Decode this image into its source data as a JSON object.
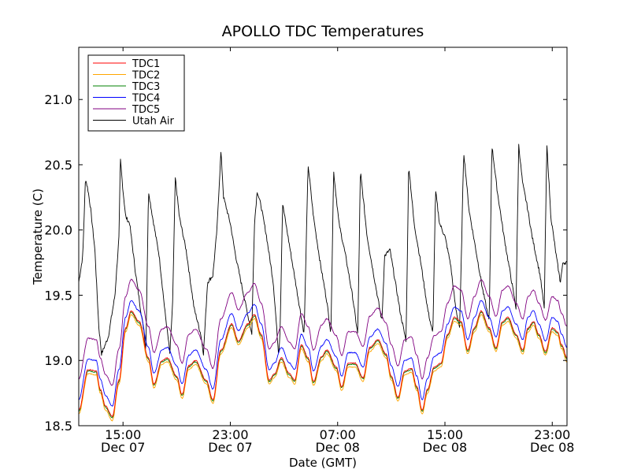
{
  "chart_data": {
    "type": "line",
    "title": "APOLLO TDC Temperatures",
    "xlabel": "Date (GMT)",
    "ylabel": "Temperature (C)",
    "xlim": [
      0,
      36.4
    ],
    "ylim": [
      18.5,
      21.4
    ],
    "yticks": [
      {
        "value": 18.5,
        "label": "18.5"
      },
      {
        "value": 19.0,
        "label": "19.0"
      },
      {
        "value": 19.5,
        "label": "19.5"
      },
      {
        "value": 20.0,
        "label": "20.0"
      },
      {
        "value": 20.5,
        "label": "20.5"
      },
      {
        "value": 21.0,
        "label": "21.0"
      }
    ],
    "xticks": [
      {
        "value": 3.3,
        "time": "15:00",
        "date": "Dec 07"
      },
      {
        "value": 11.3,
        "time": "23:00",
        "date": "Dec 07"
      },
      {
        "value": 19.3,
        "time": "07:00",
        "date": "Dec 08"
      },
      {
        "value": 27.3,
        "time": "15:00",
        "date": "Dec 08"
      },
      {
        "value": 35.3,
        "time": "23:00",
        "date": "Dec 08"
      }
    ],
    "legend_position": "top-left",
    "series": [
      {
        "name": "TDC1",
        "color": "#ff0000"
      },
      {
        "name": "TDC2",
        "color": "#ffa500"
      },
      {
        "name": "TDC3",
        "color": "#008000"
      },
      {
        "name": "TDC4",
        "color": "#0000ff"
      },
      {
        "name": "TDC5",
        "color": "#800080"
      },
      {
        "name": "Utah Air",
        "color": "#000000"
      }
    ],
    "base_tdc_key_points": [
      [
        0.0,
        18.62
      ],
      [
        0.7,
        18.93
      ],
      [
        1.3,
        18.92
      ],
      [
        1.6,
        18.78
      ],
      [
        2.0,
        18.65
      ],
      [
        2.5,
        18.57
      ],
      [
        3.0,
        18.85
      ],
      [
        3.5,
        19.25
      ],
      [
        3.9,
        19.38
      ],
      [
        4.5,
        19.3
      ],
      [
        5.2,
        19.02
      ],
      [
        5.6,
        18.82
      ],
      [
        6.2,
        19.0
      ],
      [
        6.6,
        19.02
      ],
      [
        7.3,
        18.88
      ],
      [
        7.7,
        18.74
      ],
      [
        8.2,
        18.96
      ],
      [
        8.7,
        19.0
      ],
      [
        9.5,
        18.85
      ],
      [
        10.0,
        18.7
      ],
      [
        10.6,
        19.08
      ],
      [
        11.4,
        19.28
      ],
      [
        11.9,
        19.15
      ],
      [
        12.6,
        19.28
      ],
      [
        13.1,
        19.35
      ],
      [
        13.6,
        19.2
      ],
      [
        14.2,
        18.85
      ],
      [
        14.6,
        18.9
      ],
      [
        15.1,
        19.02
      ],
      [
        15.7,
        18.9
      ],
      [
        16.1,
        18.85
      ],
      [
        16.6,
        19.12
      ],
      [
        17.1,
        19.02
      ],
      [
        17.5,
        18.84
      ],
      [
        18.1,
        19.03
      ],
      [
        18.5,
        19.08
      ],
      [
        19.2,
        18.95
      ],
      [
        19.6,
        18.8
      ],
      [
        20.1,
        18.98
      ],
      [
        20.6,
        18.98
      ],
      [
        21.2,
        18.87
      ],
      [
        21.7,
        19.1
      ],
      [
        22.3,
        19.16
      ],
      [
        22.9,
        19.05
      ],
      [
        23.3,
        18.88
      ],
      [
        23.8,
        18.72
      ],
      [
        24.3,
        18.92
      ],
      [
        24.8,
        18.94
      ],
      [
        25.2,
        18.8
      ],
      [
        25.6,
        18.62
      ],
      [
        26.0,
        18.78
      ],
      [
        26.5,
        18.95
      ],
      [
        27.0,
        18.98
      ],
      [
        27.5,
        19.2
      ],
      [
        28.0,
        19.33
      ],
      [
        28.5,
        19.3
      ],
      [
        29.0,
        19.08
      ],
      [
        29.5,
        19.25
      ],
      [
        30.0,
        19.38
      ],
      [
        30.6,
        19.25
      ],
      [
        31.1,
        19.1
      ],
      [
        31.6,
        19.3
      ],
      [
        32.0,
        19.33
      ],
      [
        32.6,
        19.2
      ],
      [
        33.1,
        19.08
      ],
      [
        33.5,
        19.25
      ],
      [
        33.9,
        19.3
      ],
      [
        34.3,
        19.2
      ],
      [
        34.8,
        19.07
      ],
      [
        35.3,
        19.25
      ],
      [
        35.7,
        19.22
      ],
      [
        36.0,
        19.12
      ],
      [
        36.4,
        19.02
      ]
    ],
    "series_offsets": {
      "TDC1": 0.0,
      "TDC2": -0.03,
      "TDC3": -0.01,
      "TDC4": 0.08,
      "TDC5": 0.24
    },
    "utah_air_key_points": [
      [
        0.0,
        19.6
      ],
      [
        0.3,
        19.8
      ],
      [
        0.5,
        20.4
      ],
      [
        0.7,
        20.3
      ],
      [
        0.9,
        20.15
      ],
      [
        1.2,
        19.85
      ],
      [
        1.5,
        19.25
      ],
      [
        1.7,
        19.05
      ],
      [
        2.2,
        19.18
      ],
      [
        2.7,
        19.5
      ],
      [
        3.0,
        19.95
      ],
      [
        3.1,
        20.55
      ],
      [
        3.3,
        20.3
      ],
      [
        3.5,
        20.1
      ],
      [
        3.8,
        20.05
      ],
      [
        4.2,
        19.7
      ],
      [
        4.6,
        19.4
      ],
      [
        4.9,
        19.2
      ],
      [
        5.0,
        19.05
      ],
      [
        5.2,
        20.3
      ],
      [
        5.5,
        20.1
      ],
      [
        6.0,
        19.8
      ],
      [
        6.4,
        19.4
      ],
      [
        6.8,
        19.05
      ],
      [
        7.0,
        19.45
      ],
      [
        7.2,
        20.4
      ],
      [
        7.5,
        20.1
      ],
      [
        8.0,
        19.85
      ],
      [
        8.6,
        19.4
      ],
      [
        9.1,
        19.2
      ],
      [
        9.3,
        19.05
      ],
      [
        9.6,
        19.6
      ],
      [
        10.0,
        19.65
      ],
      [
        10.3,
        20.0
      ],
      [
        10.6,
        20.6
      ],
      [
        10.8,
        20.25
      ],
      [
        11.3,
        20.05
      ],
      [
        11.7,
        19.8
      ],
      [
        12.2,
        19.55
      ],
      [
        12.7,
        19.3
      ],
      [
        12.9,
        19.2
      ],
      [
        13.1,
        20.05
      ],
      [
        13.3,
        20.3
      ],
      [
        13.6,
        20.18
      ],
      [
        14.0,
        19.95
      ],
      [
        14.5,
        19.6
      ],
      [
        14.9,
        19.05
      ],
      [
        15.0,
        19.2
      ],
      [
        15.2,
        20.2
      ],
      [
        15.6,
        19.95
      ],
      [
        16.0,
        19.7
      ],
      [
        16.4,
        19.45
      ],
      [
        16.8,
        19.2
      ],
      [
        17.1,
        20.5
      ],
      [
        17.5,
        20.1
      ],
      [
        18.0,
        19.75
      ],
      [
        18.5,
        19.45
      ],
      [
        18.8,
        19.2
      ],
      [
        19.0,
        20.45
      ],
      [
        19.4,
        20.05
      ],
      [
        19.9,
        19.8
      ],
      [
        20.4,
        19.5
      ],
      [
        20.8,
        19.2
      ],
      [
        21.0,
        20.45
      ],
      [
        21.5,
        19.95
      ],
      [
        22.0,
        19.65
      ],
      [
        22.6,
        19.3
      ],
      [
        22.8,
        19.8
      ],
      [
        23.2,
        19.85
      ],
      [
        23.6,
        19.6
      ],
      [
        24.0,
        19.35
      ],
      [
        24.4,
        19.15
      ],
      [
        24.6,
        20.5
      ],
      [
        25.0,
        20.05
      ],
      [
        25.5,
        19.75
      ],
      [
        26.0,
        19.4
      ],
      [
        26.4,
        19.2
      ],
      [
        26.6,
        20.3
      ],
      [
        26.9,
        20.05
      ],
      [
        27.3,
        19.95
      ],
      [
        27.7,
        19.75
      ],
      [
        28.1,
        19.4
      ],
      [
        28.4,
        19.25
      ],
      [
        28.7,
        20.6
      ],
      [
        29.1,
        20.15
      ],
      [
        29.6,
        19.85
      ],
      [
        30.1,
        19.55
      ],
      [
        30.6,
        19.3
      ],
      [
        30.8,
        20.65
      ],
      [
        31.2,
        20.3
      ],
      [
        31.7,
        19.95
      ],
      [
        32.2,
        19.65
      ],
      [
        32.6,
        19.4
      ],
      [
        32.8,
        20.65
      ],
      [
        33.1,
        20.35
      ],
      [
        33.4,
        20.2
      ],
      [
        33.8,
        19.95
      ],
      [
        34.4,
        19.65
      ],
      [
        34.7,
        19.4
      ],
      [
        34.9,
        20.65
      ],
      [
        35.2,
        20.1
      ],
      [
        35.6,
        19.8
      ],
      [
        35.9,
        19.6
      ],
      [
        36.1,
        19.75
      ],
      [
        36.4,
        19.75
      ]
    ]
  }
}
